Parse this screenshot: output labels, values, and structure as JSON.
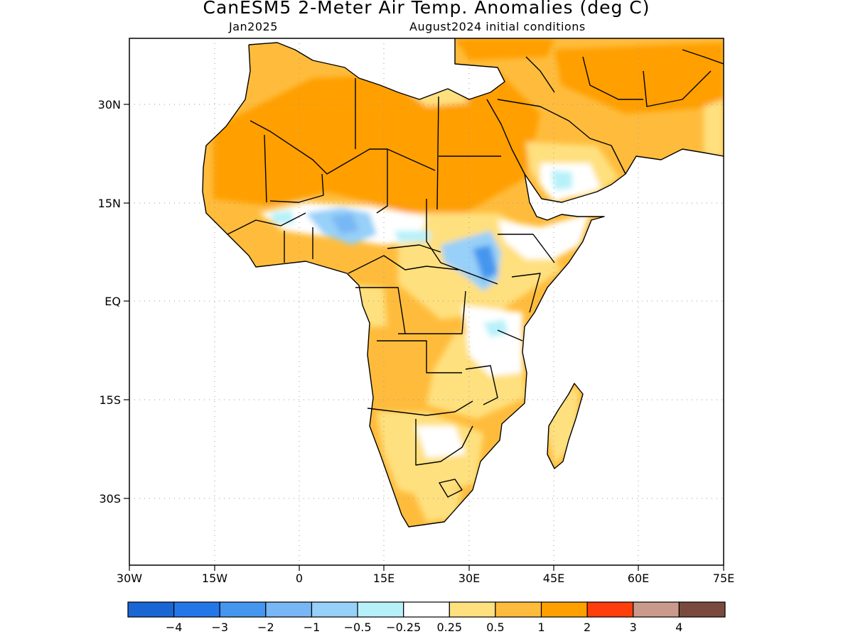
{
  "header": {
    "title": "CanESM5 2-Meter Air Temp. Anomalies (deg C)",
    "left_subtitle": "Jan2025",
    "right_subtitle": "August2024 initial conditions"
  },
  "map": {
    "region": "Africa",
    "lon_range": [
      -30,
      75
    ],
    "lat_range": [
      -40,
      40
    ],
    "lat_ticks": [
      "30N",
      "15N",
      "EQ",
      "15S",
      "30S"
    ],
    "lon_ticks": [
      "30W",
      "15W",
      "0",
      "15E",
      "30E",
      "45E",
      "60E",
      "75E"
    ],
    "grid": "dotted"
  },
  "colorbar": {
    "colors": [
      "#1a66d4",
      "#2477e8",
      "#4596ef",
      "#78b7f5",
      "#97d0f8",
      "#b6f1f9",
      "#ffffff",
      "#ffe07e",
      "#ffbc3c",
      "#ff9f00",
      "#ff3e0c",
      "#c99a8c",
      "#7b4a3e"
    ],
    "labels": [
      "-4",
      "-3",
      "-2",
      "-1",
      "-0.5",
      "-0.25",
      "0.25",
      "0.5",
      "1",
      "2",
      "3",
      "4"
    ]
  }
}
